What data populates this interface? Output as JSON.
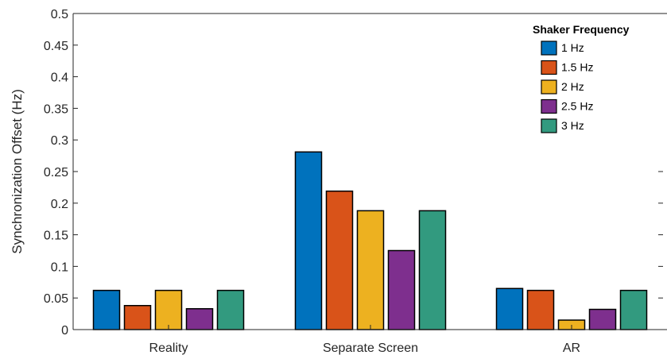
{
  "chart_data": {
    "type": "bar",
    "categories": [
      "Reality",
      "Separate Screen",
      "AR"
    ],
    "series": [
      {
        "name": "1 Hz",
        "values": [
          0.062,
          0.281,
          0.065
        ],
        "color": "#0072BD"
      },
      {
        "name": "1.5 Hz",
        "values": [
          0.038,
          0.219,
          0.062
        ],
        "color": "#D95319"
      },
      {
        "name": "2 Hz",
        "values": [
          0.062,
          0.188,
          0.015
        ],
        "color": "#EDB120"
      },
      {
        "name": "2.5 Hz",
        "values": [
          0.033,
          0.125,
          0.032
        ],
        "color": "#7E2F8E"
      },
      {
        "name": "3 Hz",
        "values": [
          0.062,
          0.188,
          0.062
        ],
        "color": "#329A7F"
      }
    ],
    "title": "",
    "xlabel": "",
    "ylabel": "Synchronization Offset (Hz)",
    "ylim": [
      0,
      0.5
    ],
    "yticks": [
      0,
      0.05,
      0.1,
      0.15,
      0.2,
      0.25,
      0.3,
      0.35,
      0.4,
      0.45,
      0.5
    ],
    "ytick_labels": [
      "0",
      "0.05",
      "0.1",
      "0.15",
      "0.2",
      "0.25",
      "0.3",
      "0.35",
      "0.4",
      "0.45",
      "0.5"
    ],
    "legend": {
      "title": "Shaker Frequency",
      "position": "top-right"
    },
    "grid": false
  }
}
